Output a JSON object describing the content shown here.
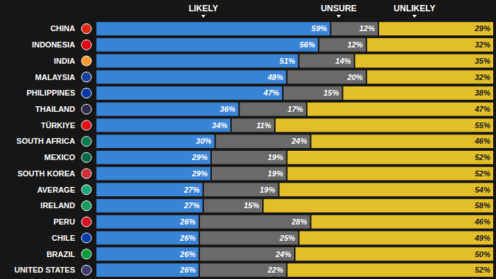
{
  "chart_data": {
    "type": "bar",
    "orientation": "horizontal",
    "stacked": true,
    "data_labels": true,
    "tick_labels": false,
    "xlim": [
      0,
      100
    ],
    "categories": [
      "CHINA",
      "INDONESIA",
      "INDIA",
      "MALAYSIA",
      "PHILIPPINES",
      "THAILAND",
      "TÜRKIYE",
      "SOUTH AFRICA",
      "MEXICO",
      "SOUTH KOREA",
      "AVERAGE",
      "IRELAND",
      "PERU",
      "CHILE",
      "BRAZIL",
      "UNITED STATES"
    ],
    "series": [
      {
        "name": "LIKELY",
        "color": "#3a84d6",
        "values": [
          59,
          56,
          51,
          48,
          47,
          36,
          34,
          30,
          29,
          29,
          27,
          27,
          26,
          26,
          26,
          26
        ],
        "value_labels": [
          "59%",
          "56%",
          "51%",
          "48%",
          "47%",
          "36%",
          "34%",
          "30%",
          "29%",
          "29%",
          "27%",
          "27%",
          "26%",
          "26%",
          "26%",
          "26%"
        ]
      },
      {
        "name": "UNSURE",
        "color": "#6a6a6a",
        "values": [
          12,
          12,
          14,
          20,
          15,
          17,
          11,
          24,
          19,
          19,
          19,
          15,
          28,
          25,
          24,
          22
        ],
        "value_labels": [
          "12%",
          "12%",
          "14%",
          "20%",
          "15%",
          "17%",
          "11%",
          "24%",
          "19%",
          "19%",
          "19%",
          "15%",
          "28%",
          "25%",
          "24%",
          "22%"
        ]
      },
      {
        "name": "UNLIKELY",
        "color": "#e3c02a",
        "values": [
          29,
          32,
          35,
          32,
          38,
          47,
          55,
          46,
          52,
          52,
          54,
          58,
          46,
          49,
          50,
          52
        ],
        "value_labels": [
          "29%",
          "32%",
          "35%",
          "32%",
          "38%",
          "47%",
          "55%",
          "46%",
          "52%",
          "52%",
          "54%",
          "58%",
          "46%",
          "49%",
          "50%",
          "52%"
        ]
      }
    ]
  }
}
